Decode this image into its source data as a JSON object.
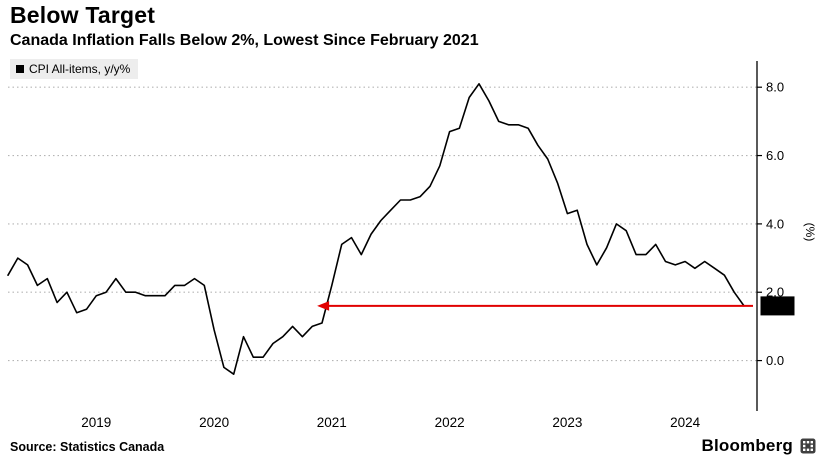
{
  "header": {
    "title": "Below Target",
    "subtitle": "Canada Inflation Falls Below 2%, Lowest Since February 2021"
  },
  "legend": {
    "label": "CPI All-items, y/y%"
  },
  "footer": {
    "source": "Source: Statistics Canada",
    "brand": "Bloomberg"
  },
  "chart_data": {
    "type": "line",
    "title": "Below Target",
    "subtitle": "Canada Inflation Falls Below 2%, Lowest Since February 2021",
    "series_name": "CPI All-items, y/y%",
    "x_start_month": "2018-06",
    "x_end_month": "2024-09",
    "values": [
      2.5,
      3.0,
      2.8,
      2.2,
      2.4,
      1.7,
      2.0,
      1.4,
      1.5,
      1.9,
      2.0,
      2.4,
      2.0,
      2.0,
      1.9,
      1.9,
      1.9,
      2.2,
      2.2,
      2.4,
      2.2,
      0.9,
      -0.2,
      -0.4,
      0.7,
      0.1,
      0.1,
      0.5,
      0.7,
      1.0,
      0.7,
      1.0,
      1.1,
      2.2,
      3.4,
      3.6,
      3.1,
      3.7,
      4.1,
      4.4,
      4.7,
      4.7,
      4.8,
      5.1,
      5.7,
      6.7,
      6.8,
      7.7,
      8.1,
      7.6,
      7.0,
      6.9,
      6.9,
      6.8,
      6.3,
      5.9,
      5.2,
      4.3,
      4.4,
      3.4,
      2.8,
      3.3,
      4.0,
      3.8,
      3.1,
      3.1,
      3.4,
      2.9,
      2.8,
      2.9,
      2.7,
      2.9,
      2.7,
      2.5,
      2.0,
      1.6
    ],
    "x_tick_labels": [
      "2019",
      "2020",
      "2021",
      "2022",
      "2023",
      "2024"
    ],
    "x_tick_positions": [
      9,
      21,
      33,
      45,
      57,
      69
    ],
    "y_ticks": [
      0.0,
      2.0,
      4.0,
      6.0,
      8.0
    ],
    "y_tick_labels": [
      "0.0",
      "2.0",
      "4.0",
      "6.0",
      "8.0"
    ],
    "ylim": [
      -1.3,
      8.65
    ],
    "ylabel": "(%)",
    "grid": "dotted-horizontal",
    "legend_position": "top-left",
    "line_color": "#000000",
    "annotation": {
      "value": 1.6,
      "label": "1.6",
      "arrow_color": "#e10000",
      "arrow_to_index": 31.5,
      "meaning": "Lowest since February 2021"
    }
  }
}
